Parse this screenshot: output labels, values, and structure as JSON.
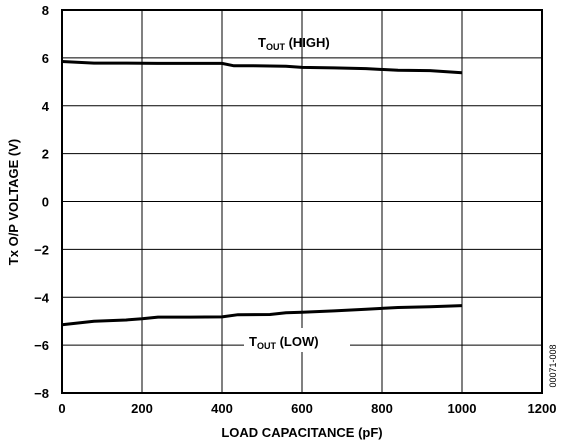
{
  "chart_data": {
    "type": "line",
    "xlabel": "LOAD CAPACITANCE (pF)",
    "ylabel": "Tx O/P VOLTAGE (V)",
    "xlim": [
      0,
      1200
    ],
    "ylim": [
      -8,
      8
    ],
    "x_ticks": [
      0,
      200,
      400,
      600,
      800,
      1000,
      1200
    ],
    "y_ticks": [
      8,
      6,
      4,
      2,
      0,
      -2,
      -4,
      -6,
      -8
    ],
    "y_tick_labels": [
      "8",
      "6",
      "4",
      "2",
      "0",
      "−2",
      "−4",
      "−6",
      "−8"
    ],
    "grid": true,
    "legend": "none",
    "series": [
      {
        "name": "TOUT (HIGH)",
        "label_main": "T",
        "label_sub": "OUT",
        "label_suffix": " (HIGH)",
        "x": [
          0,
          80,
          160,
          240,
          320,
          400,
          430,
          480,
          560,
          600,
          680,
          760,
          840,
          920,
          1000
        ],
        "y": [
          5.85,
          5.78,
          5.78,
          5.77,
          5.77,
          5.77,
          5.67,
          5.67,
          5.65,
          5.6,
          5.58,
          5.55,
          5.48,
          5.47,
          5.38
        ]
      },
      {
        "name": "TOUT (LOW)",
        "label_main": "T",
        "label_sub": "OUT",
        "label_suffix": " (LOW)",
        "x": [
          0,
          80,
          160,
          200,
          240,
          320,
          400,
          440,
          520,
          560,
          600,
          680,
          760,
          840,
          920,
          1000
        ],
        "y": [
          -5.15,
          -5.0,
          -4.95,
          -4.9,
          -4.83,
          -4.83,
          -4.82,
          -4.73,
          -4.72,
          -4.65,
          -4.63,
          -4.57,
          -4.5,
          -4.43,
          -4.4,
          -4.35
        ]
      }
    ],
    "figure_code": "00071-008"
  }
}
